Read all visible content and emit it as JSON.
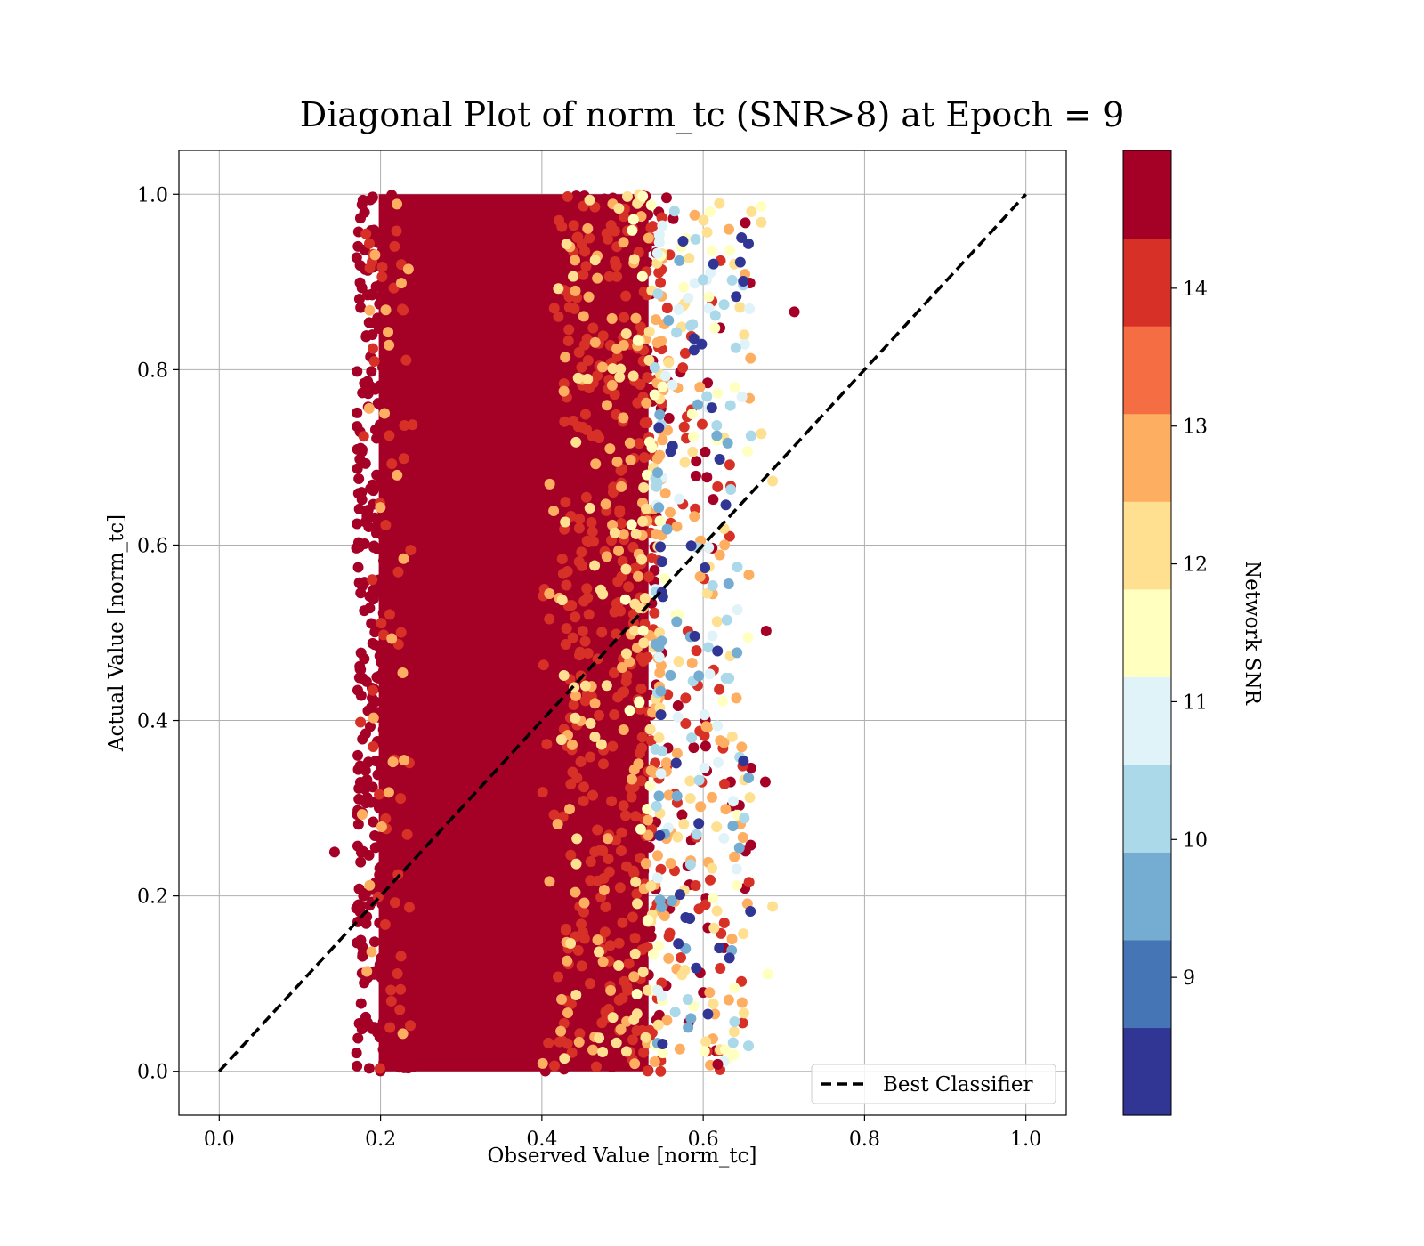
{
  "chart_data": {
    "type": "scatter",
    "title": "Diagonal Plot of norm_tc (SNR>8) at Epoch = 9",
    "xlabel": "Observed Value [norm_tc]",
    "ylabel": "Actual Value [norm_tc]",
    "xlim": [
      -0.05,
      1.05
    ],
    "ylim": [
      -0.05,
      1.05
    ],
    "xticks": [
      "0.0",
      "0.2",
      "0.4",
      "0.6",
      "0.8",
      "1.0"
    ],
    "yticks": [
      "0.0",
      "0.2",
      "0.4",
      "0.6",
      "0.8",
      "1.0"
    ],
    "grid": true,
    "legend": {
      "placement": "lower right",
      "entries": [
        "Best Classifier"
      ]
    },
    "reference_line": {
      "name": "Best Classifier",
      "style": "dashed",
      "color": "#000000",
      "x": [
        0.0,
        1.0
      ],
      "y": [
        0.0,
        1.0
      ]
    },
    "scatter": {
      "color_variable": "Network SNR",
      "cluster_x_range": [
        0.17,
        0.66
      ],
      "dense_core_x_range": [
        0.2,
        0.53
      ],
      "y_range": [
        0.0,
        1.0
      ],
      "outliers": [
        {
          "x": 0.143,
          "y": 0.25,
          "snr": 14.5
        },
        {
          "x": 0.713,
          "y": 0.866,
          "snr": 14.5
        },
        {
          "x": 0.678,
          "y": 0.502,
          "snr": 14.5
        },
        {
          "x": 0.677,
          "y": 0.33,
          "snr": 14.5
        },
        {
          "x": 0.686,
          "y": 0.188,
          "snr": 12.3
        },
        {
          "x": 0.68,
          "y": 0.111,
          "snr": 11.3
        },
        {
          "x": 0.686,
          "y": 0.673,
          "snr": 12.3
        },
        {
          "x": 0.672,
          "y": 0.727,
          "snr": 12.3
        },
        {
          "x": 0.672,
          "y": 0.986,
          "snr": 11.3
        },
        {
          "x": 0.672,
          "y": 0.968,
          "snr": 12.3
        },
        {
          "x": 0.618,
          "y": 0.008,
          "snr": 14.5
        }
      ]
    },
    "colorbar": {
      "label": "Network SNR",
      "range": [
        8,
        15
      ],
      "ticks": [
        "9",
        "10",
        "11",
        "12",
        "13",
        "14"
      ],
      "tick_values": [
        9,
        10,
        11,
        12,
        13,
        14
      ],
      "colors": [
        "#313695",
        "#4575b4",
        "#74add1",
        "#abd9e9",
        "#e0f3f8",
        "#ffffbf",
        "#fee090",
        "#fdae61",
        "#f46d43",
        "#d73027",
        "#a50026"
      ]
    }
  }
}
